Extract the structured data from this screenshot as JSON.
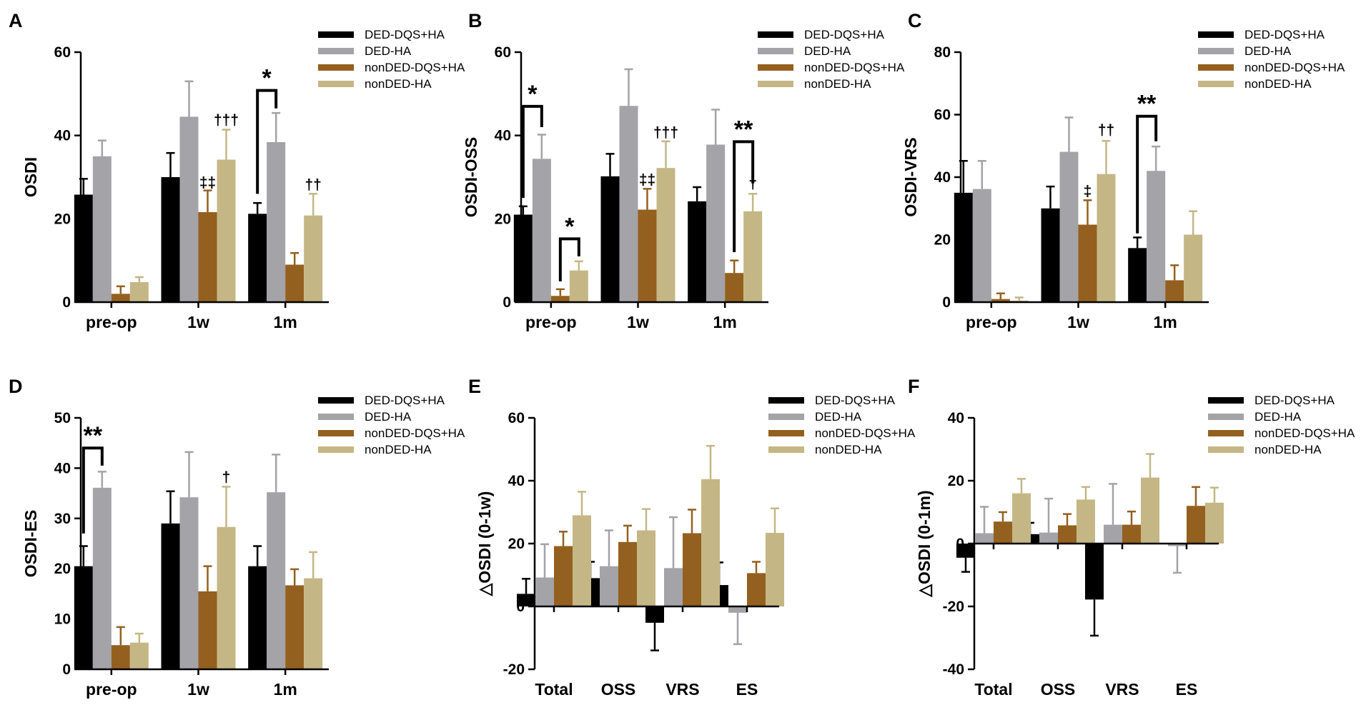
{
  "colors": {
    "DED-DQS+HA": "#000000",
    "DED-HA": "#a3a3a8",
    "nonDED-DQS+HA": "#94601f",
    "nonDED-HA": "#c4b785"
  },
  "legend_labels": [
    "DED-DQS+HA",
    "DED-HA",
    "nonDED-DQS+HA",
    "nonDED-HA"
  ],
  "chart_data": [
    {
      "type": "bar",
      "letter": "A",
      "ylabel": "OSDI",
      "categories": [
        "pre-op",
        "1w",
        "1m"
      ],
      "ylim": [
        0,
        60
      ],
      "yticks": [
        0,
        20,
        40,
        60
      ],
      "legend": "top-right",
      "series": [
        {
          "name": "DED-DQS+HA",
          "values": [
            25.8,
            30.0,
            21.2
          ],
          "err": [
            3.8,
            5.8,
            2.6
          ]
        },
        {
          "name": "DED-HA",
          "values": [
            35.0,
            44.5,
            38.4
          ],
          "err": [
            3.8,
            8.5,
            7.0
          ]
        },
        {
          "name": "nonDED-DQS+HA",
          "values": [
            2.0,
            21.6,
            9.0
          ],
          "err": [
            1.8,
            5.2,
            2.8
          ]
        },
        {
          "name": "nonDED-HA",
          "values": [
            4.8,
            34.2,
            20.8
          ],
          "err": [
            1.2,
            7.2,
            5.2
          ]
        }
      ],
      "annotations": [
        {
          "text": "‡‡",
          "type": "dagger",
          "cat": 1,
          "series": 2,
          "above": 27.5
        },
        {
          "text": "†††",
          "type": "dagger",
          "cat": 1,
          "series": 3,
          "above": 42.5
        },
        {
          "text": "††",
          "type": "dagger",
          "cat": 2,
          "series": 3,
          "above": 27.0
        },
        {
          "text": "*",
          "type": "bracket",
          "cat": 2,
          "s1": 0,
          "s2": 1,
          "low1": 26.0,
          "low2": 46.5,
          "top": 50.8
        }
      ]
    },
    {
      "type": "bar",
      "letter": "B",
      "ylabel": "OSDI-OSS",
      "categories": [
        "pre-op",
        "1w",
        "1m"
      ],
      "ylim": [
        0,
        60
      ],
      "yticks": [
        0,
        20,
        40,
        60
      ],
      "legend": "top-right",
      "series": [
        {
          "name": "DED-DQS+HA",
          "values": [
            21.0,
            30.2,
            24.2
          ],
          "err": [
            2.0,
            5.4,
            3.4
          ]
        },
        {
          "name": "DED-HA",
          "values": [
            34.4,
            47.1,
            37.8
          ],
          "err": [
            5.8,
            8.8,
            8.4
          ]
        },
        {
          "name": "nonDED-DQS+HA",
          "values": [
            1.5,
            22.2,
            7.0
          ],
          "err": [
            1.6,
            5.0,
            3.0
          ]
        },
        {
          "name": "nonDED-HA",
          "values": [
            7.6,
            32.2,
            21.8
          ],
          "err": [
            2.2,
            6.4,
            4.2
          ]
        }
      ],
      "annotations": [
        {
          "text": "‡‡",
          "type": "dagger",
          "cat": 1,
          "series": 2,
          "above": 28.2
        },
        {
          "text": "†††",
          "type": "dagger",
          "cat": 1,
          "series": 3,
          "above": 39.5
        },
        {
          "text": "†",
          "type": "dagger",
          "cat": 2,
          "series": 3,
          "above": 27.3
        },
        {
          "text": "*",
          "type": "bracket",
          "cat": 0,
          "s1": 0,
          "s2": 1,
          "low1": 25.0,
          "low2": 42.0,
          "top": 47.0
        },
        {
          "text": "*",
          "type": "bracket",
          "cat": 0,
          "s1": 2,
          "s2": 3,
          "low1": 5.0,
          "low2": 11.0,
          "top": 15.2
        },
        {
          "text": "**",
          "type": "bracket",
          "cat": 2,
          "s1": 2,
          "s2": 3,
          "low1": 12.0,
          "low2": 28.5,
          "top": 38.5
        }
      ]
    },
    {
      "type": "bar",
      "letter": "C",
      "ylabel": "OSDI-VRS",
      "categories": [
        "pre-op",
        "1w",
        "1m"
      ],
      "ylim": [
        0,
        80
      ],
      "yticks": [
        0,
        20,
        40,
        60,
        80
      ],
      "legend": "top-right",
      "series": [
        {
          "name": "DED-DQS+HA",
          "values": [
            35.0,
            30.0,
            17.3
          ],
          "err": [
            10.2,
            7.0,
            3.4
          ]
        },
        {
          "name": "DED-HA",
          "values": [
            36.2,
            48.1,
            42.0
          ],
          "err": [
            9.0,
            11.0,
            7.8
          ]
        },
        {
          "name": "nonDED-DQS+HA",
          "values": [
            1.0,
            24.8,
            7.0
          ],
          "err": [
            1.8,
            7.8,
            4.8
          ]
        },
        {
          "name": "nonDED-HA",
          "values": [
            0.5,
            41.0,
            21.6
          ],
          "err": [
            1.0,
            10.6,
            7.5
          ]
        }
      ],
      "annotations": [
        {
          "text": "‡",
          "type": "dagger",
          "cat": 1,
          "series": 2,
          "above": 34.0
        },
        {
          "text": "††",
          "type": "dagger",
          "cat": 1,
          "series": 3,
          "above": 53.5
        },
        {
          "text": "**",
          "type": "bracket",
          "cat": 2,
          "s1": 0,
          "s2": 1,
          "low1": 22.0,
          "low2": 51.5,
          "top": 59.5
        }
      ]
    },
    {
      "type": "bar",
      "letter": "D",
      "ylabel": "OSDI-ES",
      "categories": [
        "pre-op",
        "1w",
        "1m"
      ],
      "ylim": [
        0,
        50
      ],
      "yticks": [
        0,
        10,
        20,
        30,
        40,
        50
      ],
      "legend": "top-right",
      "series": [
        {
          "name": "DED-DQS+HA",
          "values": [
            20.5,
            29.0,
            20.5
          ],
          "err": [
            4.0,
            6.4,
            4.0
          ]
        },
        {
          "name": "DED-HA",
          "values": [
            36.1,
            34.2,
            35.2
          ],
          "err": [
            3.2,
            9.0,
            7.5
          ]
        },
        {
          "name": "nonDED-DQS+HA",
          "values": [
            4.8,
            15.5,
            16.7
          ],
          "err": [
            3.6,
            5.0,
            3.2
          ]
        },
        {
          "name": "nonDED-HA",
          "values": [
            5.3,
            28.3,
            18.1
          ],
          "err": [
            1.8,
            8.0,
            5.2
          ]
        }
      ],
      "annotations": [
        {
          "text": "†",
          "type": "dagger",
          "cat": 1,
          "series": 3,
          "above": 37.2
        },
        {
          "text": "**",
          "type": "bracket",
          "cat": 0,
          "s1": 0,
          "s2": 1,
          "low1": 27.0,
          "low2": 40.5,
          "top": 44.0
        }
      ]
    },
    {
      "type": "bar",
      "letter": "E",
      "ylabel": "△OSDI (0-1w)",
      "categories": [
        "Total",
        "OSS",
        "VRS",
        "ES"
      ],
      "ylim": [
        -20,
        60
      ],
      "yticks": [
        -20,
        0,
        20,
        40,
        60
      ],
      "legend": "top-right",
      "series": [
        {
          "name": "DED-DQS+HA",
          "values": [
            4.0,
            9.0,
            -5.2,
            6.8
          ],
          "err": [
            4.8,
            5.2,
            8.8,
            7.2
          ]
        },
        {
          "name": "DED-HA",
          "values": [
            9.2,
            12.8,
            12.2,
            -2.0
          ],
          "err": [
            10.6,
            11.4,
            16.2,
            10.0
          ]
        },
        {
          "name": "nonDED-DQS+HA",
          "values": [
            19.2,
            20.5,
            23.3,
            10.6
          ],
          "err": [
            4.6,
            5.2,
            7.5,
            3.6
          ]
        },
        {
          "name": "nonDED-HA",
          "values": [
            29.0,
            24.2,
            40.5,
            23.4
          ],
          "err": [
            7.5,
            6.8,
            10.6,
            7.8
          ]
        }
      ],
      "annotations": []
    },
    {
      "type": "bar",
      "letter": "F",
      "ylabel": "△OSDI (0-1m)",
      "categories": [
        "Total",
        "OSS",
        "VRS",
        "ES"
      ],
      "ylim": [
        -40,
        40
      ],
      "yticks": [
        -40,
        -20,
        0,
        20,
        40
      ],
      "legend": "top-right",
      "series": [
        {
          "name": "DED-DQS+HA",
          "values": [
            -4.5,
            3.0,
            -17.8,
            0.0
          ],
          "err": [
            4.5,
            3.6,
            11.5,
            0.0
          ]
        },
        {
          "name": "DED-HA",
          "values": [
            3.3,
            3.5,
            6.0,
            -0.8
          ],
          "err": [
            8.4,
            10.8,
            13.0,
            8.5
          ]
        },
        {
          "name": "nonDED-DQS+HA",
          "values": [
            7.0,
            5.8,
            6.0,
            12.0
          ],
          "err": [
            3.0,
            3.6,
            4.2,
            6.0
          ]
        },
        {
          "name": "nonDED-HA",
          "values": [
            16.0,
            14.0,
            21.0,
            13.0
          ],
          "err": [
            4.6,
            4.0,
            7.5,
            4.8
          ]
        }
      ],
      "annotations": []
    }
  ]
}
